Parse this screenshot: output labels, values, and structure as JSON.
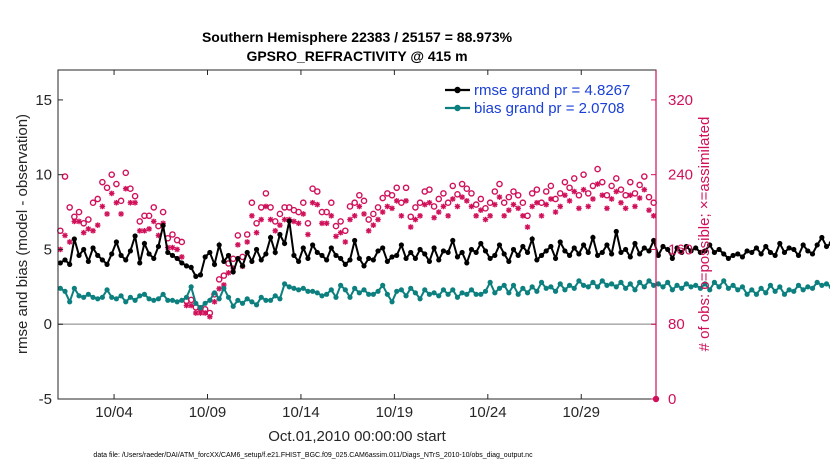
{
  "chart_data": {
    "type": "line",
    "title": "Southern Hemisphere 22383 / 25157 = 88.973%",
    "subtitle": "GPSRO_REFRACTIVITY @ 415 m",
    "xlabel": "Oct.01,2010 00:00:00 start",
    "ylabel_left": "rmse and bias (model - observation)",
    "ylabel_right": "# of obs: o=possible; ×=assimilated",
    "footnote": "data file: /Users/raeder/DAI/ATM_forcXX/CAM6_setup/f.e21.FHIST_BGC.f09_025.CAM6assim.011/Diags_NTrS_2010-10/obs_diag_output.nc",
    "xlim": [
      1,
      33
    ],
    "x_ticks": [
      4,
      9,
      14,
      19,
      24,
      29
    ],
    "x_tick_labels": [
      "10/04",
      "10/09",
      "10/14",
      "10/19",
      "10/24",
      "10/29"
    ],
    "ylim_left": [
      -5,
      17
    ],
    "y_ticks_left": [
      -5,
      0,
      5,
      10,
      15
    ],
    "ylim_right": [
      0,
      352
    ],
    "y_ticks_right": [
      0,
      80,
      160,
      240,
      320
    ],
    "grid": false,
    "legend_position": "top-right",
    "colors": {
      "rmse": "#000000",
      "bias": "#0c7f7f",
      "obs": "#d0105a",
      "zero_line": "#b0b0b0"
    },
    "x_step_days": 0.25,
    "series": [
      {
        "name": "rmse grand pr = 4.8267",
        "axis": "left",
        "values": [
          4.1,
          4.3,
          4.0,
          5.7,
          4.6,
          5.0,
          4.2,
          5.1,
          4.6,
          4.3,
          4.0,
          4.7,
          5.5,
          4.6,
          4.3,
          4.9,
          5.9,
          4.1,
          5.4,
          4.7,
          4.4,
          5.2,
          6.6,
          4.8,
          4.6,
          4.4,
          4.1,
          3.9,
          3.8,
          3.2,
          3.3,
          4.5,
          4.8,
          4.0,
          5.3,
          4.2,
          4.6,
          3.5,
          4.4,
          3.9,
          4.8,
          4.2,
          5.0,
          4.3,
          4.7,
          5.8,
          4.8,
          6.0,
          5.4,
          6.9,
          4.6,
          4.2,
          5.1,
          4.4,
          5.3,
          4.8,
          4.6,
          4.3,
          5.1,
          4.6,
          4.4,
          4.0,
          4.3,
          5.6,
          4.4,
          3.9,
          4.4,
          4.3,
          4.9,
          5.1,
          4.2,
          4.5,
          4.6,
          5.3,
          4.4,
          4.8,
          4.4,
          5.0,
          4.7,
          4.2,
          5.1,
          4.3,
          4.9,
          4.8,
          5.6,
          4.5,
          4.8,
          4.1,
          5.0,
          4.8,
          5.4,
          4.9,
          4.4,
          4.6,
          5.3,
          4.7,
          4.2,
          5.0,
          4.6,
          5.2,
          4.8,
          5.7,
          4.3,
          4.6,
          4.9,
          5.2,
          4.4,
          5.5,
          4.9,
          4.6,
          5.1,
          4.7,
          5.3,
          4.8,
          5.8,
          4.6,
          4.8,
          5.3,
          4.7,
          6.2,
          4.8,
          5.0,
          4.5,
          5.4,
          4.7,
          5.1,
          4.9,
          5.6,
          4.6,
          5.2,
          5.0,
          4.4,
          5.1,
          4.8,
          5.2,
          4.9,
          5.1,
          4.8,
          4.9,
          5.3,
          4.8,
          5.0,
          4.7,
          4.4,
          4.6,
          4.7,
          4.5,
          4.9,
          4.8,
          5.1,
          4.7,
          5.2,
          4.8,
          4.6,
          5.4,
          4.8,
          5.1,
          5.0,
          4.6,
          5.3,
          4.9,
          4.7,
          5.3,
          5.8,
          5.2,
          5.4,
          5.3,
          5.7,
          5.4,
          5.5
        ]
      },
      {
        "name": "bias grand pr = 2.0708",
        "axis": "left",
        "values": [
          2.4,
          2.2,
          1.5,
          2.4,
          1.9,
          1.8,
          2.0,
          1.8,
          1.7,
          1.8,
          2.3,
          1.8,
          1.7,
          1.9,
          1.5,
          1.8,
          1.6,
          1.9,
          2.0,
          1.7,
          1.6,
          1.7,
          2.0,
          1.6,
          1.6,
          1.5,
          1.6,
          1.8,
          2.5,
          1.4,
          1.1,
          1.4,
          1.6,
          2.1,
          1.7,
          2.4,
          1.8,
          1.2,
          1.6,
          1.4,
          1.7,
          1.5,
          1.3,
          1.8,
          1.6,
          1.6,
          1.9,
          1.7,
          2.7,
          2.5,
          2.4,
          2.3,
          2.4,
          2.2,
          2.2,
          2.1,
          1.9,
          2.0,
          2.3,
          1.8,
          2.6,
          2.3,
          1.8,
          2.4,
          2.1,
          2.3,
          2.0,
          2.0,
          2.2,
          2.6,
          2.0,
          1.5,
          2.2,
          2.3,
          1.9,
          2.4,
          2.1,
          1.7,
          2.3,
          2.0,
          2.1,
          1.9,
          2.3,
          2.0,
          2.3,
          1.8,
          2.1,
          2.0,
          2.3,
          2.0,
          2.0,
          2.2,
          2.8,
          2.1,
          2.4,
          2.6,
          2.1,
          2.6,
          2.0,
          2.4,
          2.1,
          2.5,
          2.2,
          2.8,
          2.4,
          2.5,
          2.2,
          2.7,
          2.3,
          2.6,
          2.4,
          2.9,
          2.6,
          2.5,
          2.8,
          2.5,
          2.9,
          2.6,
          2.7,
          2.5,
          2.8,
          2.4,
          2.7,
          2.3,
          2.8,
          2.5,
          2.9,
          2.6,
          2.7,
          2.5,
          2.8,
          2.3,
          2.6,
          2.4,
          2.7,
          2.5,
          2.6,
          2.4,
          2.7,
          2.3,
          2.8,
          2.5,
          2.9,
          2.4,
          2.6,
          2.3,
          2.5,
          2.0,
          2.3,
          2.0,
          2.4,
          2.1,
          2.6,
          2.2,
          2.5,
          2.0,
          2.3,
          2.2,
          2.6,
          2.3,
          2.5,
          2.4,
          2.8,
          2.6,
          2.7,
          2.5,
          2.9,
          2.6,
          2.5,
          2.7,
          3.5,
          2.6
        ]
      },
      {
        "name": "possible",
        "axis": "right",
        "marker": "o",
        "values": [
          180,
          238,
          205,
          195,
          200,
          188,
          192,
          210,
          214,
          232,
          226,
          240,
          230,
          212,
          242,
          225,
          217,
          190,
          196,
          196,
          205,
          185,
          200,
          172,
          176,
          170,
          168,
          105,
          106,
          98,
          97,
          96,
          92,
          112,
          128,
          132,
          145,
          150,
          175,
          152,
          176,
          210,
          188,
          205,
          220,
          205,
          190,
          198,
          205,
          205,
          202,
          200,
          210,
          188,
          225,
          222,
          200,
          200,
          210,
          185,
          190,
          180,
          206,
          210,
          218,
          212,
          192,
          198,
          205,
          215,
          220,
          218,
          226,
          210,
          226,
          195,
          205,
          210,
          222,
          224,
          206,
          214,
          220,
          210,
          228,
          219,
          230,
          225,
          220,
          208,
          214,
          204,
          210,
          222,
          230,
          210,
          216,
          222,
          218,
          210,
          196,
          220,
          224,
          210,
          222,
          228,
          214,
          220,
          232,
          226,
          236,
          218,
          240,
          220,
          228,
          246,
          232,
          218,
          228,
          236,
          224,
          218,
          232,
          220,
          229,
          238,
          216,
          210,
          232,
          218,
          226,
          220,
          212,
          223,
          226,
          256,
          232,
          220,
          204,
          212,
          220,
          204,
          212,
          200,
          216,
          220,
          210,
          202,
          208,
          196,
          200,
          205,
          210,
          215,
          212,
          224,
          218,
          228,
          210,
          226,
          230,
          220,
          255,
          235,
          210,
          198,
          206,
          230,
          232,
          220,
          214,
          188
        ]
      },
      {
        "name": "assimilated",
        "axis": "right",
        "marker": "x",
        "values": [
          160,
          175,
          168,
          190,
          190,
          178,
          182,
          180,
          186,
          206,
          198,
          220,
          210,
          198,
          225,
          210,
          210,
          180,
          180,
          182,
          190,
          175,
          188,
          162,
          162,
          160,
          152,
          100,
          100,
          92,
          92,
          92,
          88,
          104,
          118,
          122,
          135,
          140,
          165,
          142,
          168,
          196,
          178,
          192,
          206,
          192,
          180,
          186,
          192,
          192,
          190,
          188,
          198,
          176,
          210,
          208,
          188,
          188,
          196,
          174,
          178,
          168,
          192,
          196,
          206,
          198,
          180,
          186,
          192,
          200,
          206,
          204,
          212,
          196,
          212,
          184,
          192,
          196,
          208,
          210,
          194,
          200,
          206,
          196,
          214,
          206,
          216,
          212,
          206,
          196,
          202,
          192,
          196,
          208,
          216,
          196,
          202,
          208,
          204,
          196,
          184,
          206,
          210,
          196,
          208,
          214,
          200,
          206,
          218,
          212,
          222,
          204,
          224,
          206,
          214,
          230,
          218,
          204,
          214,
          222,
          210,
          204,
          218,
          206,
          215,
          224,
          202,
          196,
          218,
          204,
          212,
          206,
          198,
          209,
          212,
          240,
          218,
          206,
          190,
          198,
          206,
          190,
          198,
          186,
          202,
          206,
          196,
          188,
          194,
          182,
          186,
          191,
          196,
          201,
          198,
          210,
          204,
          214,
          196,
          212,
          216,
          206,
          240,
          220,
          196,
          184,
          192,
          216,
          218,
          206,
          200,
          176
        ]
      }
    ]
  }
}
